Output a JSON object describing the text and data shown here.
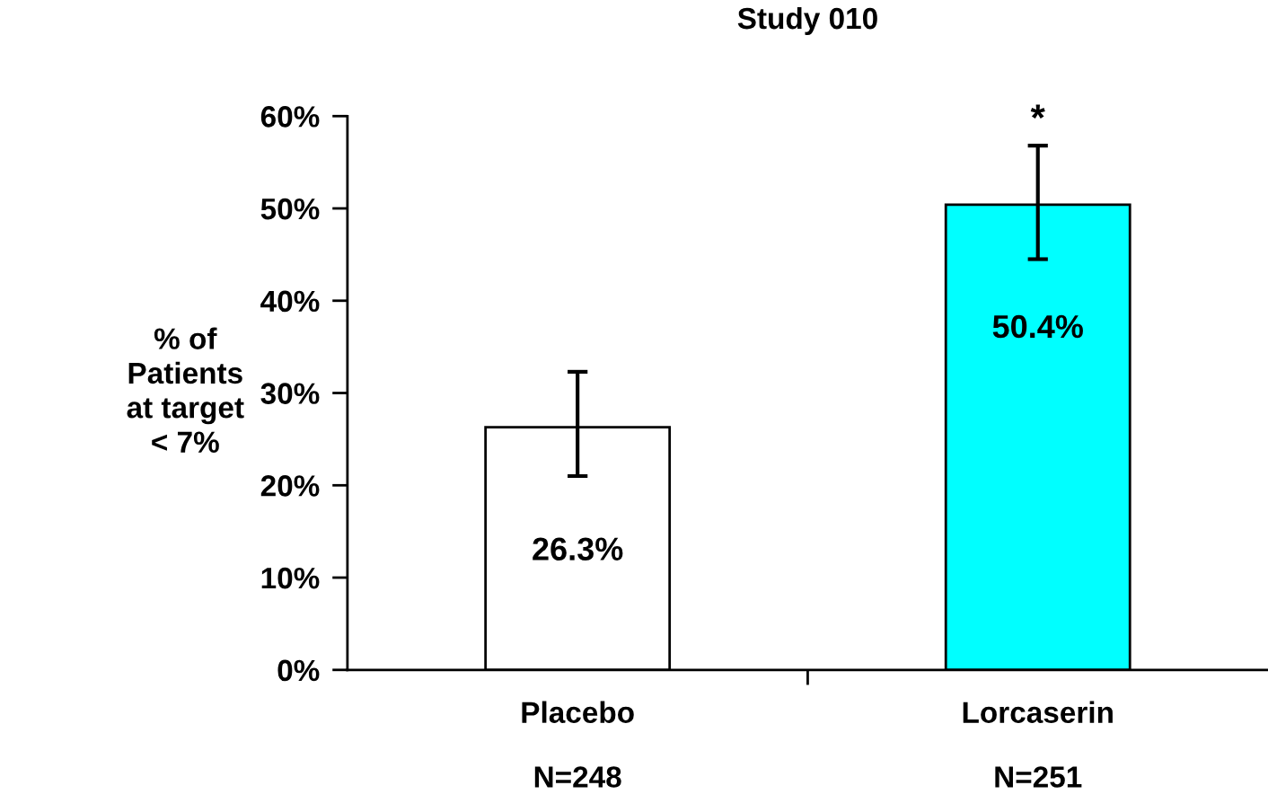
{
  "chart_data": {
    "type": "bar",
    "title": "Study 010",
    "ylabel": "% of\nPatients\nat target\n< 7%",
    "categories": [
      "Placebo\n\nN=248",
      "Lorcaserin\n\nN=251"
    ],
    "values": [
      26.3,
      50.4
    ],
    "colors": [
      "#ffffff",
      "#00ffff"
    ],
    "errors": [
      [
        21.0,
        32.3
      ],
      [
        44.5,
        56.8
      ]
    ],
    "value_labels": [
      "26.3%",
      "50.4%"
    ],
    "annotations": [
      "*"
    ],
    "ylim": [
      0,
      60
    ],
    "yticks": [
      {
        "value": 0,
        "label": "0%"
      },
      {
        "value": 10,
        "label": "10%"
      },
      {
        "value": 20,
        "label": "20%"
      },
      {
        "value": 30,
        "label": "30%"
      },
      {
        "value": 40,
        "label": "40%"
      },
      {
        "value": 50,
        "label": "50%"
      },
      {
        "value": 60,
        "label": "60%"
      }
    ],
    "grid": false,
    "legend": false
  }
}
